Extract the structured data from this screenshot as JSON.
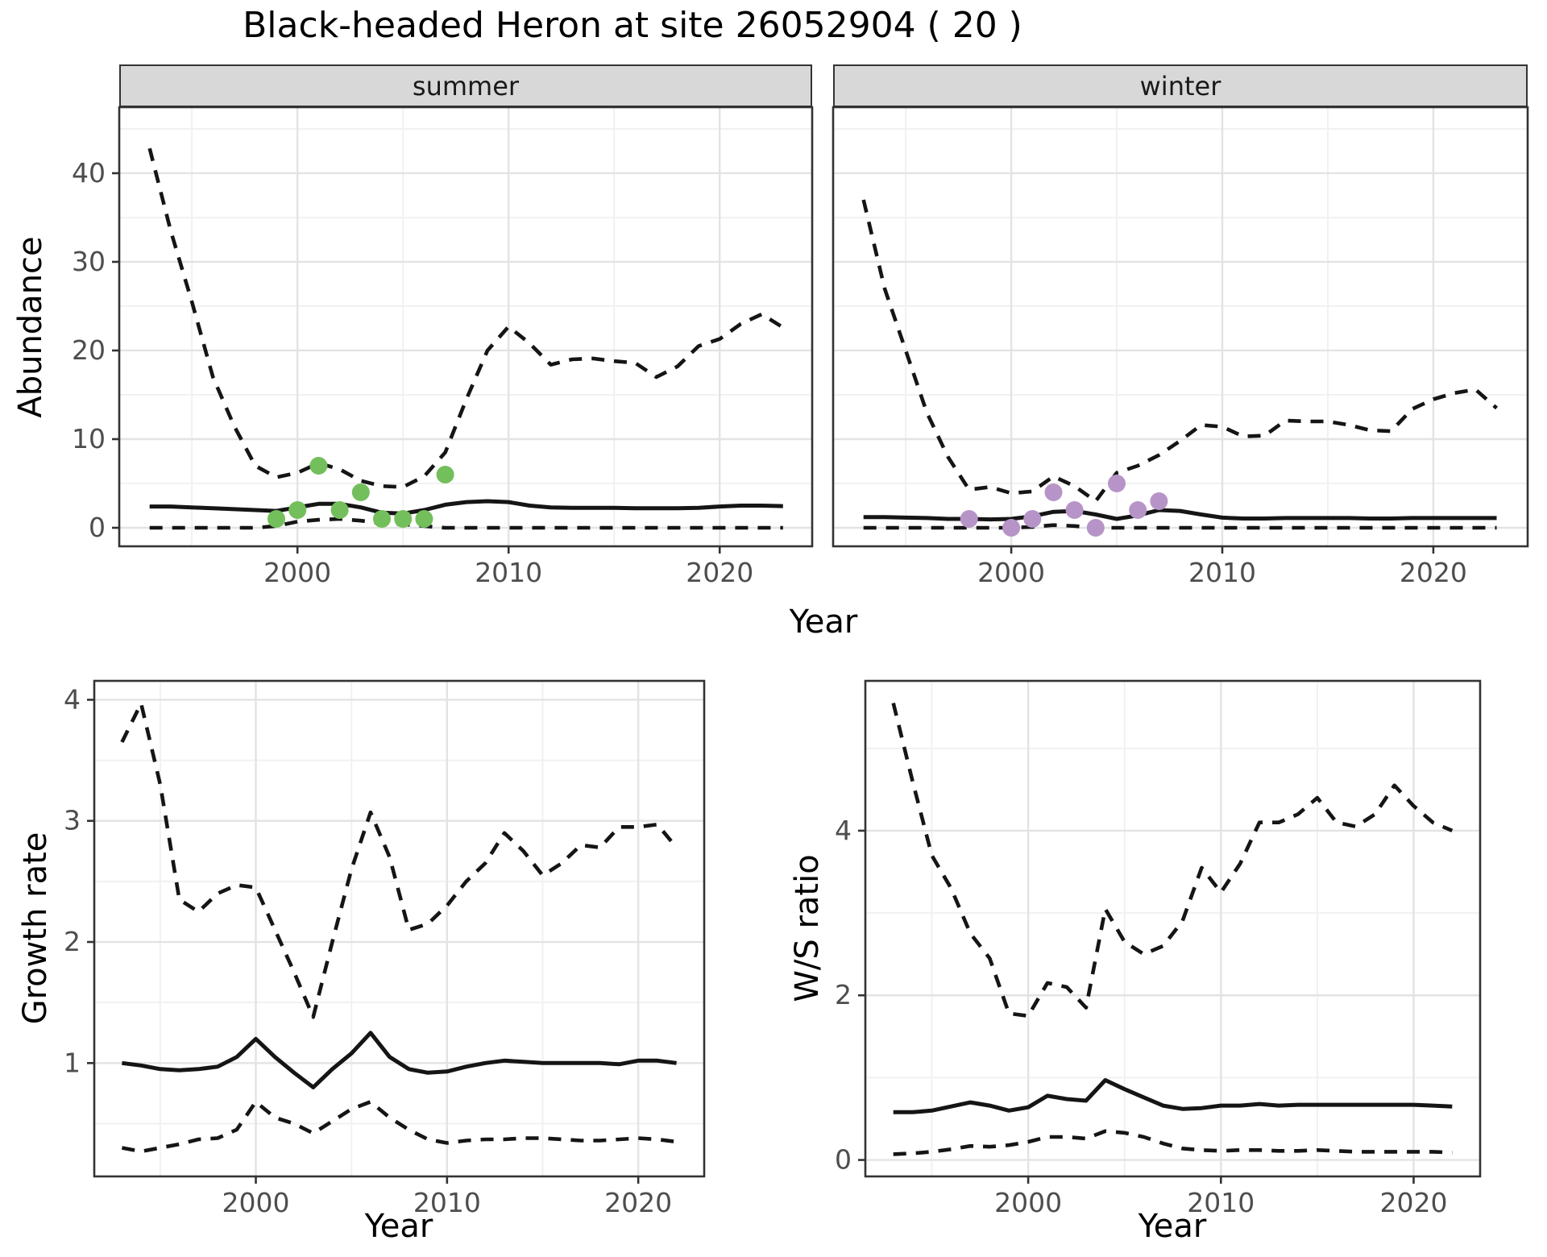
{
  "title": "Black-headed Heron at site 26052904 ( 20 )",
  "facets": [
    {
      "label": "summer"
    },
    {
      "label": "winter"
    }
  ],
  "axis_labels": {
    "abundance": "Abundance",
    "year_top": "Year",
    "growth_rate": "Growth rate",
    "ws_ratio": "W/S ratio",
    "year_bottom_left": "Year",
    "year_bottom_right": "Year"
  },
  "colors": {
    "summer_point": "#73BF5B",
    "winter_point": "#B794C7",
    "line": "#151515",
    "grid_major": "#E3E3E3",
    "grid_minor": "#F1F1F1",
    "panel_border": "#333333",
    "strip_bg": "#D8D8D8",
    "strip_text": "#1A1A1A",
    "axis_text": "#4D4D4D",
    "background": "#FFFFFF"
  },
  "chart_data": [
    {
      "id": "summer",
      "type": "line",
      "facet_label": "summer",
      "xlabel": "Year",
      "ylabel": "Abundance",
      "x": [
        1993,
        1994,
        1995,
        1996,
        1997,
        1998,
        1999,
        2000,
        2001,
        2002,
        2003,
        2004,
        2005,
        2006,
        2007,
        2008,
        2009,
        2010,
        2011,
        2012,
        2013,
        2014,
        2015,
        2016,
        2017,
        2018,
        2019,
        2020,
        2021,
        2022,
        2023
      ],
      "series": [
        {
          "name": "upper_ci",
          "style": "dashed",
          "values": [
            42.8,
            33.5,
            25.5,
            17,
            11.5,
            7,
            5.7,
            6.2,
            7.3,
            6.6,
            5.3,
            4.7,
            4.6,
            5.8,
            8.5,
            14.5,
            20,
            22.7,
            20.8,
            18.4,
            19,
            19.1,
            18.8,
            18.6,
            17,
            18.2,
            20.5,
            21.3,
            23,
            24.1,
            22.6
          ]
        },
        {
          "name": "median",
          "style": "solid",
          "values": [
            2.4,
            2.4,
            2.3,
            2.2,
            2.1,
            2,
            1.9,
            2.3,
            2.7,
            2.7,
            2.3,
            1.7,
            1.6,
            2,
            2.6,
            2.9,
            3,
            2.9,
            2.5,
            2.3,
            2.25,
            2.25,
            2.25,
            2.2,
            2.2,
            2.2,
            2.25,
            2.4,
            2.5,
            2.5,
            2.45
          ]
        },
        {
          "name": "lower_ci",
          "style": "dashed",
          "values": [
            0,
            0,
            0,
            0,
            0,
            0,
            0.2,
            0.7,
            0.9,
            1,
            0.8,
            0.5,
            0.4,
            0.2,
            0,
            0,
            0,
            0,
            0,
            0,
            0,
            0,
            0,
            0,
            0,
            0,
            0,
            0,
            0,
            0,
            0
          ]
        }
      ],
      "points": {
        "color_key": "summer_point",
        "data": [
          [
            1999,
            1
          ],
          [
            2000,
            2
          ],
          [
            2001,
            7
          ],
          [
            2002,
            2
          ],
          [
            2003,
            4
          ],
          [
            2004,
            1
          ],
          [
            2005,
            1
          ],
          [
            2006,
            1
          ],
          [
            2007,
            6
          ]
        ]
      },
      "xlim": [
        1991.56,
        2024.38
      ],
      "ylim": [
        -2.09,
        47.45
      ],
      "x_ticks": {
        "major": [
          2000,
          2010,
          2020
        ],
        "minor": [
          1995,
          2005,
          2015
        ],
        "labels": [
          "2000",
          "2010",
          "2020"
        ]
      },
      "y_ticks": {
        "major": [
          0,
          10,
          20,
          30,
          40
        ],
        "minor": [
          5,
          15,
          25,
          35,
          45
        ],
        "labels": [
          "0",
          "10",
          "20",
          "30",
          "40"
        ],
        "show_labels": true
      }
    },
    {
      "id": "winter",
      "type": "line",
      "facet_label": "winter",
      "xlabel": "Year",
      "ylabel": "Abundance",
      "x": [
        1993,
        1994,
        1995,
        1996,
        1997,
        1998,
        1999,
        2000,
        2001,
        2002,
        2003,
        2004,
        2005,
        2006,
        2007,
        2008,
        2009,
        2010,
        2011,
        2012,
        2013,
        2014,
        2015,
        2016,
        2017,
        2018,
        2019,
        2020,
        2021,
        2022,
        2023
      ],
      "series": [
        {
          "name": "upper_ci",
          "style": "dashed",
          "values": [
            37,
            27,
            20,
            13,
            8,
            4.3,
            4.6,
            3.9,
            4.1,
            5.8,
            4.7,
            3,
            6.2,
            7,
            8.2,
            9.8,
            11.6,
            11.4,
            10.3,
            10.4,
            12.1,
            12,
            12,
            11.6,
            11,
            10.9,
            13.4,
            14.5,
            15.2,
            15.6,
            13.5
          ]
        },
        {
          "name": "median",
          "style": "solid",
          "values": [
            1.2,
            1.2,
            1.15,
            1.1,
            1,
            1,
            0.95,
            1,
            1.3,
            1.8,
            1.9,
            1.5,
            1,
            1.4,
            2,
            1.9,
            1.5,
            1.15,
            1.05,
            1.05,
            1.1,
            1.1,
            1.1,
            1.1,
            1.05,
            1.05,
            1.1,
            1.1,
            1.1,
            1.1,
            1.1
          ]
        },
        {
          "name": "lower_ci",
          "style": "dashed",
          "values": [
            0,
            0,
            0,
            0,
            0,
            0,
            0,
            0,
            0.1,
            0.3,
            0.2,
            0,
            0,
            0,
            0,
            0,
            0,
            0,
            0,
            0,
            0,
            0,
            0,
            0,
            0,
            0,
            0,
            0,
            0,
            0,
            0
          ]
        }
      ],
      "points": {
        "color_key": "winter_point",
        "data": [
          [
            1998,
            1
          ],
          [
            2000,
            0
          ],
          [
            2001,
            1
          ],
          [
            2002,
            4
          ],
          [
            2003,
            2
          ],
          [
            2004,
            0
          ],
          [
            2005,
            5
          ],
          [
            2006,
            2
          ],
          [
            2007,
            3
          ]
        ]
      },
      "xlim": [
        1991.56,
        2024.47
      ],
      "ylim": [
        -2.09,
        47.45
      ],
      "x_ticks": {
        "major": [
          2000,
          2010,
          2020
        ],
        "minor": [
          1995,
          2005,
          2015
        ],
        "labels": [
          "2000",
          "2010",
          "2020"
        ]
      },
      "y_ticks": {
        "major": [
          0,
          10,
          20,
          30,
          40
        ],
        "minor": [
          5,
          15,
          25,
          35,
          45
        ],
        "labels": [
          "0",
          "10",
          "20",
          "30",
          "40"
        ],
        "show_labels": false
      }
    },
    {
      "id": "growth",
      "type": "line",
      "facet_label": "",
      "xlabel": "Year",
      "ylabel": "Growth rate",
      "x": [
        1993,
        1994,
        1995,
        1996,
        1997,
        1998,
        1999,
        2000,
        2001,
        2002,
        2003,
        2004,
        2005,
        2006,
        2007,
        2008,
        2009,
        2010,
        2011,
        2012,
        2013,
        2014,
        2015,
        2016,
        2017,
        2018,
        2019,
        2020,
        2021,
        2022
      ],
      "series": [
        {
          "name": "upper_ci",
          "style": "dashed",
          "values": [
            3.65,
            3.97,
            3.3,
            2.35,
            2.25,
            2.4,
            2.47,
            2.45,
            2.1,
            1.75,
            1.38,
            2,
            2.6,
            3.07,
            2.7,
            2.1,
            2.15,
            2.3,
            2.5,
            2.65,
            2.9,
            2.75,
            2.55,
            2.65,
            2.8,
            2.78,
            2.95,
            2.95,
            2.97,
            2.78
          ]
        },
        {
          "name": "median",
          "style": "solid",
          "values": [
            1,
            0.98,
            0.95,
            0.94,
            0.95,
            0.97,
            1.05,
            1.2,
            1.05,
            0.92,
            0.8,
            0.95,
            1.08,
            1.25,
            1.05,
            0.95,
            0.92,
            0.93,
            0.97,
            1,
            1.02,
            1.01,
            1,
            1,
            1,
            1,
            0.99,
            1.02,
            1.02,
            1
          ]
        },
        {
          "name": "lower_ci",
          "style": "dashed",
          "values": [
            0.3,
            0.27,
            0.3,
            0.33,
            0.37,
            0.38,
            0.45,
            0.68,
            0.55,
            0.5,
            0.42,
            0.52,
            0.62,
            0.68,
            0.55,
            0.45,
            0.37,
            0.34,
            0.36,
            0.37,
            0.37,
            0.38,
            0.38,
            0.37,
            0.36,
            0.36,
            0.37,
            0.38,
            0.37,
            0.35
          ]
        }
      ],
      "points": null,
      "xlim": [
        1991.55,
        2023.45
      ],
      "ylim": [
        0.064,
        4.156
      ],
      "x_ticks": {
        "major": [
          2000,
          2010,
          2020
        ],
        "minor": [
          1995,
          2005,
          2015
        ],
        "labels": [
          "2000",
          "2010",
          "2020"
        ]
      },
      "y_ticks": {
        "major": [
          1,
          2,
          3,
          4
        ],
        "minor": [
          0.5,
          1.5,
          2.5,
          3.5
        ],
        "labels": [
          "1",
          "2",
          "3",
          "4"
        ],
        "show_labels": true
      }
    },
    {
      "id": "ws",
      "type": "line",
      "facet_label": "",
      "xlabel": "Year",
      "ylabel": "W/S ratio",
      "x": [
        1993,
        1994,
        1995,
        1996,
        1997,
        1998,
        1999,
        2000,
        2001,
        2002,
        2003,
        2004,
        2005,
        2006,
        2007,
        2008,
        2009,
        2010,
        2011,
        2012,
        2013,
        2014,
        2015,
        2016,
        2017,
        2018,
        2019,
        2020,
        2021,
        2022
      ],
      "series": [
        {
          "name": "upper_ci",
          "style": "dashed",
          "values": [
            5.55,
            4.6,
            3.7,
            3.3,
            2.75,
            2.45,
            1.78,
            1.75,
            2.15,
            2.1,
            1.85,
            3.05,
            2.65,
            2.5,
            2.6,
            2.9,
            3.55,
            3.25,
            3.6,
            4.1,
            4.1,
            4.2,
            4.4,
            4.1,
            4.05,
            4.2,
            4.55,
            4.3,
            4.1,
            4
          ]
        },
        {
          "name": "median",
          "style": "solid",
          "values": [
            0.58,
            0.58,
            0.6,
            0.65,
            0.7,
            0.66,
            0.6,
            0.64,
            0.78,
            0.74,
            0.72,
            0.97,
            0.86,
            0.76,
            0.66,
            0.62,
            0.63,
            0.66,
            0.66,
            0.68,
            0.66,
            0.67,
            0.67,
            0.67,
            0.67,
            0.67,
            0.67,
            0.67,
            0.66,
            0.65
          ]
        },
        {
          "name": "lower_ci",
          "style": "dashed",
          "values": [
            0.07,
            0.08,
            0.1,
            0.13,
            0.17,
            0.16,
            0.18,
            0.22,
            0.28,
            0.28,
            0.26,
            0.35,
            0.33,
            0.28,
            0.2,
            0.14,
            0.12,
            0.11,
            0.12,
            0.12,
            0.11,
            0.11,
            0.12,
            0.11,
            0.1,
            0.1,
            0.1,
            0.1,
            0.1,
            0.09
          ]
        }
      ],
      "points": null,
      "xlim": [
        1991.55,
        2023.45
      ],
      "ylim": [
        -0.2,
        5.82
      ],
      "x_ticks": {
        "major": [
          2000,
          2010,
          2020
        ],
        "minor": [
          1995,
          2005,
          2015
        ],
        "labels": [
          "2000",
          "2010",
          "2020"
        ]
      },
      "y_ticks": {
        "major": [
          0,
          2,
          4
        ],
        "minor": [
          1,
          3,
          5
        ],
        "labels": [
          "0",
          "2",
          "4"
        ],
        "show_labels": true
      }
    }
  ]
}
